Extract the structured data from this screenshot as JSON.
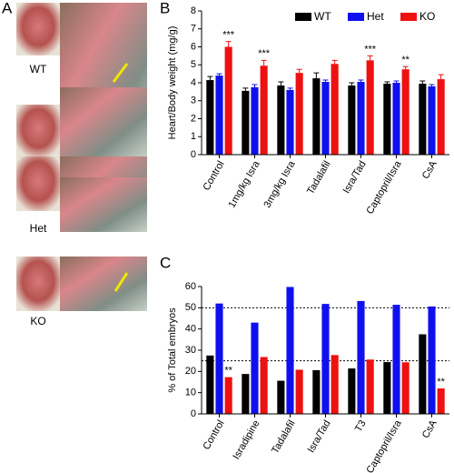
{
  "panel_labels": [
    "A",
    "B",
    "C"
  ],
  "photo_labels": [
    "WT",
    "Het",
    "KO"
  ],
  "chart_data": [
    {
      "type": "bar",
      "ylabel": "Heart/Body weight (mg/g)",
      "categories": [
        "Control",
        "1mg/kg Isra",
        "3mg/kg Isra",
        "Tadalafil",
        "Isra/Tad",
        "Captopril/Isra",
        "CsA"
      ],
      "series": [
        {
          "name": "WT",
          "color": "#000000",
          "values": [
            4.15,
            3.55,
            3.85,
            4.25,
            3.85,
            3.95,
            3.95
          ],
          "errors": [
            0.2,
            0.15,
            0.2,
            0.3,
            0.15,
            0.1,
            0.15
          ]
        },
        {
          "name": "Het",
          "color": "#1010ee",
          "values": [
            4.4,
            3.75,
            3.6,
            4.05,
            4.05,
            4.0,
            3.8
          ],
          "errors": [
            0.1,
            0.15,
            0.1,
            0.1,
            0.1,
            0.1,
            0.1
          ]
        },
        {
          "name": "KO",
          "color": "#ee1111",
          "values": [
            6.0,
            4.95,
            4.55,
            5.05,
            5.25,
            4.75,
            4.2
          ],
          "errors": [
            0.3,
            0.3,
            0.2,
            0.2,
            0.25,
            0.15,
            0.25
          ],
          "significance": [
            "***",
            "***",
            null,
            null,
            "***",
            "**",
            null
          ]
        }
      ],
      "ylim": [
        0,
        8
      ],
      "yticks": [
        0,
        1,
        2,
        3,
        4,
        5,
        6,
        7,
        8
      ],
      "legend": "top-right"
    },
    {
      "type": "bar",
      "ylabel": "% of Total embryos",
      "categories": [
        "Control",
        "Isradipine",
        "Tadalafil",
        "Isra/Tad",
        "T3",
        "Captopril/Isra",
        "CsA"
      ],
      "series": [
        {
          "name": "WT",
          "color": "#000000",
          "values": [
            27.5,
            18.8,
            15.6,
            20.6,
            21.4,
            24.4,
            37.5
          ]
        },
        {
          "name": "Het",
          "color": "#1010ee",
          "values": [
            52,
            43,
            59.8,
            51.8,
            53.2,
            51.4,
            50.6
          ]
        },
        {
          "name": "KO",
          "color": "#ee1111",
          "values": [
            17.3,
            26.8,
            20.8,
            27.7,
            25.6,
            24.3,
            12
          ],
          "significance": [
            "**",
            null,
            null,
            null,
            null,
            null,
            "**"
          ]
        }
      ],
      "ylim": [
        0,
        60
      ],
      "yticks": [
        0,
        10,
        20,
        30,
        40,
        50,
        60
      ],
      "reference_lines": [
        25,
        50
      ],
      "legend": false
    }
  ]
}
